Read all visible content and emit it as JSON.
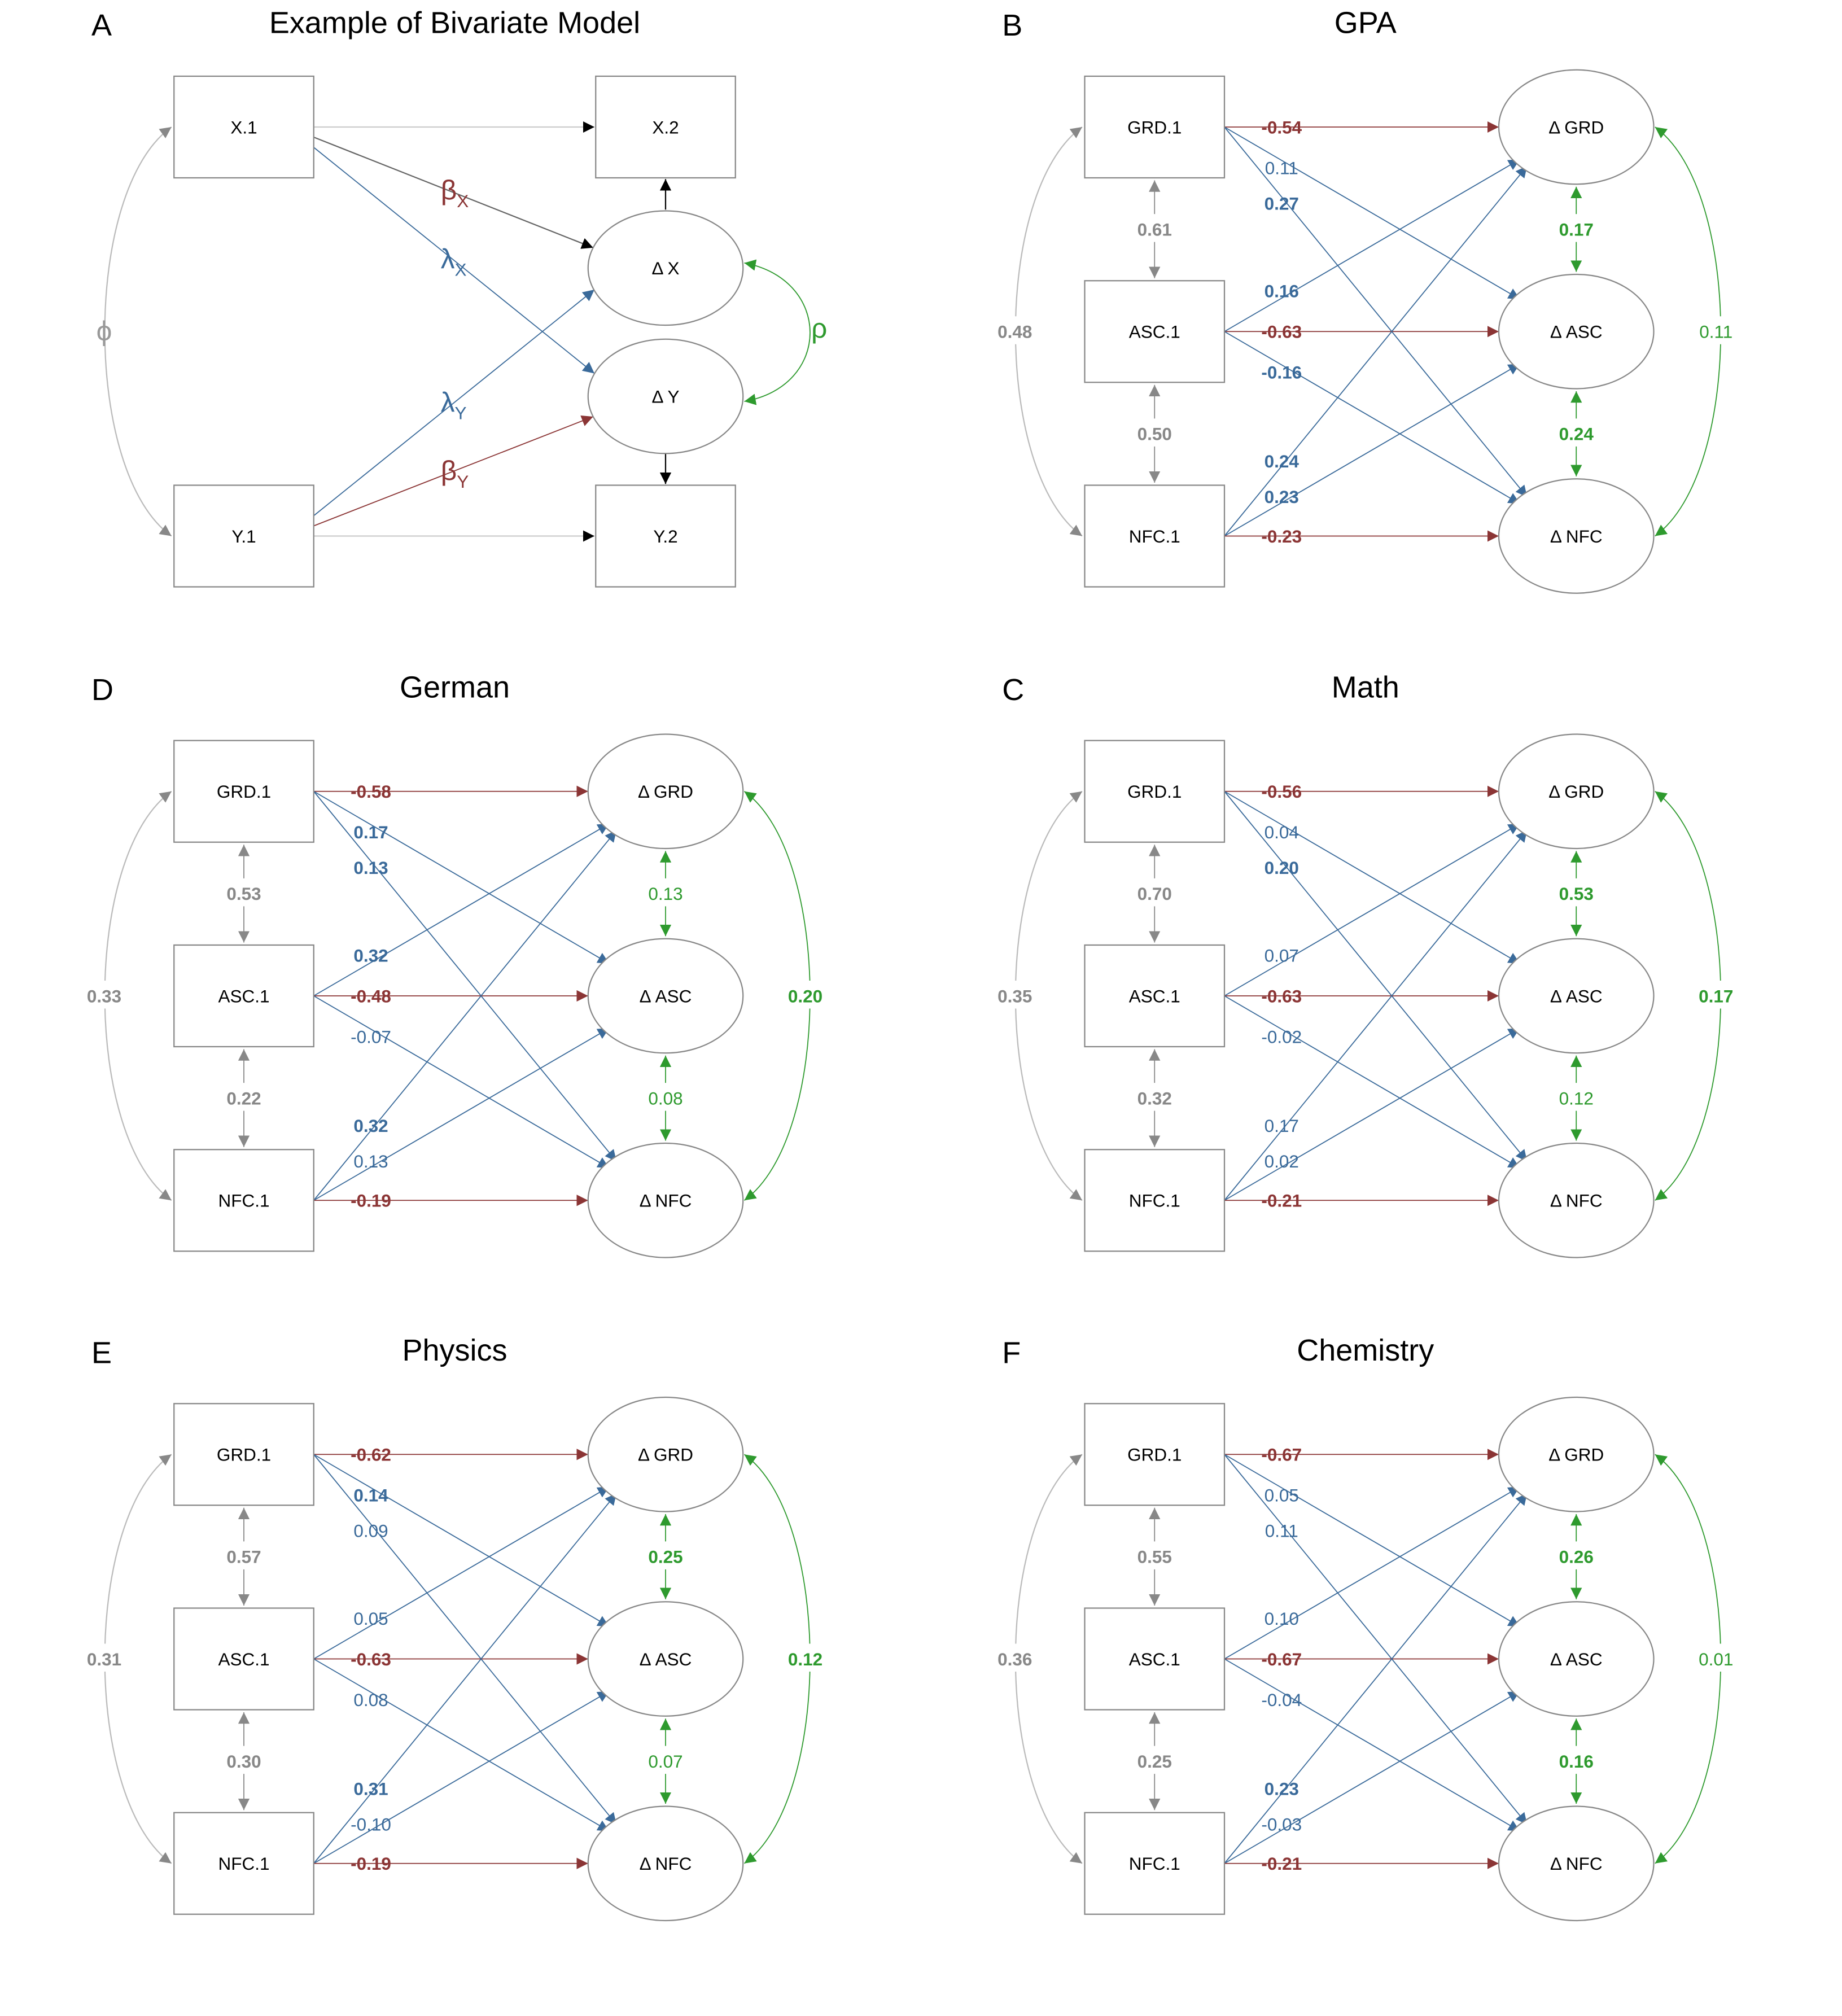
{
  "colors": {
    "negative": "#8b3535",
    "positive": "#3a6a9a",
    "stability": "#888888",
    "change": "#2e9a2e",
    "box": "#888888",
    "autoreg": "#666666",
    "text": "#000000"
  },
  "panel_a": {
    "letter": "A",
    "title": "Example of Bivariate Model",
    "nodes": {
      "x1": "X.1",
      "y1": "Y.1",
      "x2": "X.2",
      "y2": "Y.2",
      "dx": "Δ X",
      "dy": "Δ Y"
    },
    "symbols": {
      "phi": "ϕ",
      "rho": "ρ",
      "beta": "β",
      "lambda": "λ",
      "sub_x": "X",
      "sub_y": "Y"
    }
  },
  "panels": [
    {
      "letter": "B",
      "title": "GPA",
      "nodes": {
        "t1": [
          "GRD.1",
          "ASC.1",
          "NFC.1"
        ],
        "delta": [
          "Δ GRD",
          "Δ ASC",
          "Δ NFC"
        ]
      },
      "stability": {
        "grd_asc": "0.61",
        "asc_nfc": "0.50",
        "grd_nfc": "0.48"
      },
      "change_cov": {
        "grd_asc": "0.17",
        "asc_nfc": "0.24",
        "grd_nfc": "0.11"
      },
      "paths": {
        "grd": [
          "-0.54",
          "0.11",
          "0.27"
        ],
        "asc": [
          "0.16",
          "-0.63",
          "-0.16"
        ],
        "nfc": [
          "0.24",
          "0.23",
          "-0.23"
        ]
      },
      "bold": {
        "stability": [
          true,
          true,
          true
        ],
        "change": [
          true,
          true,
          false
        ],
        "grd": [
          true,
          false,
          true
        ],
        "asc": [
          true,
          true,
          true
        ],
        "nfc": [
          true,
          true,
          true
        ]
      }
    },
    {
      "letter": "D",
      "title": "German",
      "nodes": {
        "t1": [
          "GRD.1",
          "ASC.1",
          "NFC.1"
        ],
        "delta": [
          "Δ GRD",
          "Δ ASC",
          "Δ NFC"
        ]
      },
      "stability": {
        "grd_asc": "0.53",
        "asc_nfc": "0.22",
        "grd_nfc": "0.33"
      },
      "change_cov": {
        "grd_asc": "0.13",
        "asc_nfc": "0.08",
        "grd_nfc": "0.20"
      },
      "paths": {
        "grd": [
          "-0.58",
          "0.17",
          "0.13"
        ],
        "asc": [
          "0.32",
          "-0.48",
          "-0.07"
        ],
        "nfc": [
          "0.32",
          "0.13",
          "-0.19"
        ]
      },
      "bold": {
        "stability": [
          true,
          true,
          true
        ],
        "change": [
          false,
          false,
          true
        ],
        "grd": [
          true,
          true,
          true
        ],
        "asc": [
          true,
          true,
          false
        ],
        "nfc": [
          true,
          false,
          true
        ]
      }
    },
    {
      "letter": "C",
      "title": "Math",
      "nodes": {
        "t1": [
          "GRD.1",
          "ASC.1",
          "NFC.1"
        ],
        "delta": [
          "Δ GRD",
          "Δ ASC",
          "Δ NFC"
        ]
      },
      "stability": {
        "grd_asc": "0.70",
        "asc_nfc": "0.32",
        "grd_nfc": "0.35"
      },
      "change_cov": {
        "grd_asc": "0.53",
        "asc_nfc": "0.12",
        "grd_nfc": "0.17"
      },
      "paths": {
        "grd": [
          "-0.56",
          "0.04",
          "0.20"
        ],
        "asc": [
          "0.07",
          "-0.63",
          "-0.02"
        ],
        "nfc": [
          "0.17",
          "0.02",
          "-0.21"
        ]
      },
      "bold": {
        "stability": [
          true,
          true,
          true
        ],
        "change": [
          true,
          false,
          true
        ],
        "grd": [
          true,
          false,
          true
        ],
        "asc": [
          false,
          true,
          false
        ],
        "nfc": [
          false,
          false,
          true
        ]
      }
    },
    {
      "letter": "E",
      "title": "Physics",
      "nodes": {
        "t1": [
          "GRD.1",
          "ASC.1",
          "NFC.1"
        ],
        "delta": [
          "Δ GRD",
          "Δ ASC",
          "Δ NFC"
        ]
      },
      "stability": {
        "grd_asc": "0.57",
        "asc_nfc": "0.30",
        "grd_nfc": "0.31"
      },
      "change_cov": {
        "grd_asc": "0.25",
        "asc_nfc": "0.07",
        "grd_nfc": "0.12"
      },
      "paths": {
        "grd": [
          "-0.62",
          "0.14",
          "0.09"
        ],
        "asc": [
          "0.05",
          "-0.63",
          "0.08"
        ],
        "nfc": [
          "0.31",
          "-0.10",
          "-0.19"
        ]
      },
      "bold": {
        "stability": [
          true,
          true,
          true
        ],
        "change": [
          true,
          false,
          true
        ],
        "grd": [
          true,
          true,
          false
        ],
        "asc": [
          false,
          true,
          false
        ],
        "nfc": [
          true,
          false,
          true
        ]
      }
    },
    {
      "letter": "F",
      "title": "Chemistry",
      "nodes": {
        "t1": [
          "GRD.1",
          "ASC.1",
          "NFC.1"
        ],
        "delta": [
          "Δ GRD",
          "Δ ASC",
          "Δ NFC"
        ]
      },
      "stability": {
        "grd_asc": "0.55",
        "asc_nfc": "0.25",
        "grd_nfc": "0.36"
      },
      "change_cov": {
        "grd_asc": "0.26",
        "asc_nfc": "0.16",
        "grd_nfc": "0.01"
      },
      "paths": {
        "grd": [
          "-0.67",
          "0.05",
          "0.11"
        ],
        "asc": [
          "0.10",
          "-0.67",
          "-0.04"
        ],
        "nfc": [
          "0.23",
          "-0.03",
          "-0.21"
        ]
      },
      "bold": {
        "stability": [
          true,
          true,
          true
        ],
        "change": [
          true,
          true,
          false
        ],
        "grd": [
          true,
          false,
          false
        ],
        "asc": [
          false,
          true,
          false
        ],
        "nfc": [
          true,
          false,
          true
        ]
      }
    }
  ]
}
